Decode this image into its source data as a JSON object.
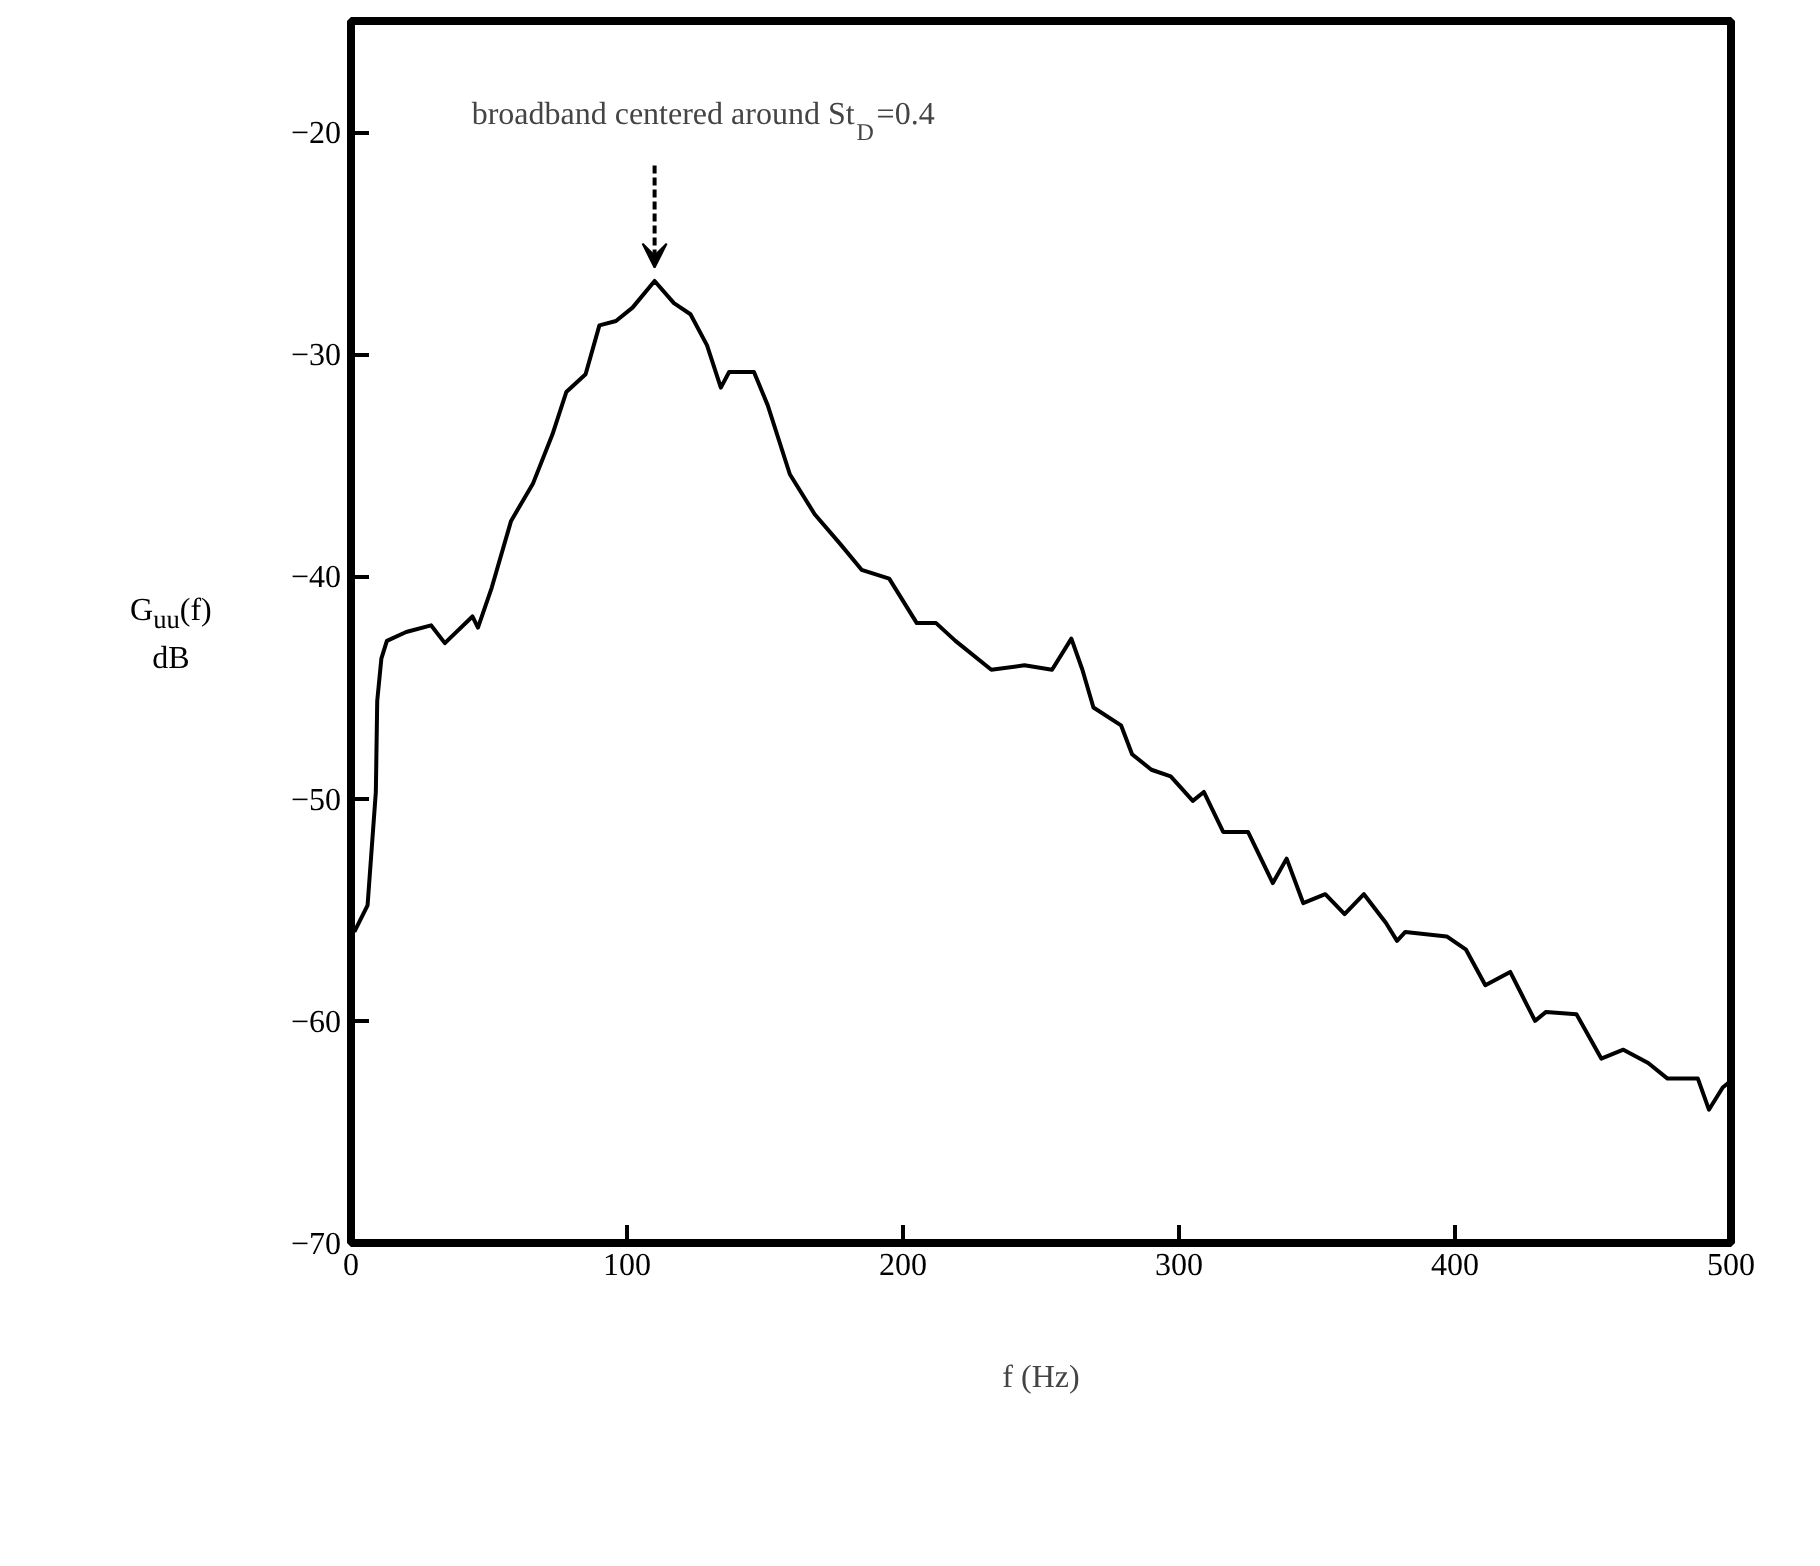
{
  "chart_data": {
    "type": "line",
    "xlabel": "f (Hz)",
    "ylabel": "G$_{uu}$(f)\ndB",
    "xlim": [
      0,
      500
    ],
    "ylim": [
      -70,
      -15
    ],
    "xticks": [
      0,
      100,
      200,
      300,
      400,
      500
    ],
    "yticks": [
      -70,
      -60,
      -50,
      -40,
      -30,
      -20
    ],
    "grid": false,
    "marker": "none",
    "line_style": "solid",
    "annotations": [
      {
        "text": "broadband centered around St$_{D}$=0.4",
        "x": 110,
        "y": -26.7
      }
    ],
    "series": [
      {
        "color": "#000000",
        "x": [
          1.2,
          6,
          9,
          9.5,
          11,
          13,
          20,
          29,
          34,
          44,
          46,
          51,
          58,
          66,
          73,
          78,
          85,
          90,
          96,
          102,
          110,
          117,
          123,
          129,
          134,
          137,
          146,
          151,
          159,
          168,
          177,
          185,
          195,
          205,
          212,
          219,
          232,
          244,
          254,
          261,
          265,
          269,
          279,
          283,
          290,
          297,
          305,
          309,
          316,
          325,
          334,
          339,
          345,
          353,
          360,
          367,
          375,
          379,
          382,
          397,
          404,
          411,
          420,
          429,
          433,
          444,
          453,
          461,
          470,
          477,
          488,
          492,
          497,
          499
        ],
        "values": [
          -56,
          -54.8,
          -49.7,
          -45.6,
          -43.7,
          -42.9,
          -42.5,
          -42.2,
          -43,
          -41.8,
          -42.3,
          -40.5,
          -37.5,
          -35.8,
          -33.6,
          -31.7,
          -30.9,
          -28.7,
          -28.5,
          -27.9,
          -26.7,
          -27.7,
          -28.2,
          -29.6,
          -31.5,
          -30.8,
          -30.8,
          -32.3,
          -35.4,
          -37.2,
          -38.5,
          -39.7,
          -40.1,
          -42.1,
          -42.1,
          -42.9,
          -44.2,
          -44,
          -44.2,
          -42.8,
          -44.2,
          -45.9,
          -46.7,
          -48,
          -48.7,
          -49,
          -50.1,
          -49.7,
          -51.5,
          -51.5,
          -53.8,
          -52.7,
          -54.7,
          -54.3,
          -55.2,
          -54.3,
          -55.6,
          -56.4,
          -56,
          -56.2,
          -56.8,
          -58.4,
          -57.8,
          -60,
          -59.6,
          -59.7,
          -61.7,
          -61.3,
          -61.9,
          -62.6,
          -62.6,
          -64,
          -63,
          -62.8
        ]
      }
    ]
  }
}
